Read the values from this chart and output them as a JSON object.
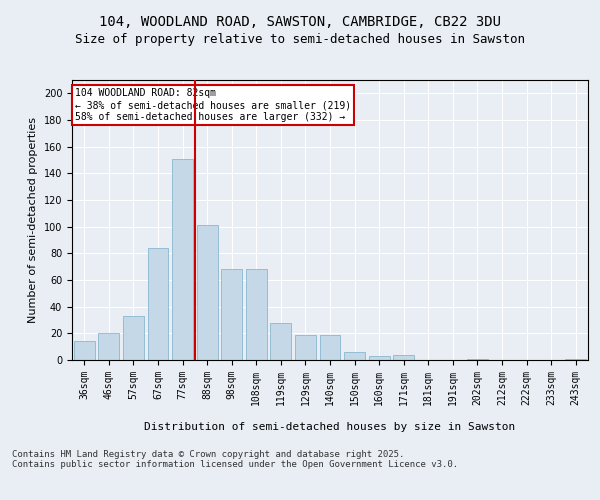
{
  "title_line1": "104, WOODLAND ROAD, SAWSTON, CAMBRIDGE, CB22 3DU",
  "title_line2": "Size of property relative to semi-detached houses in Sawston",
  "xlabel": "Distribution of semi-detached houses by size in Sawston",
  "ylabel": "Number of semi-detached properties",
  "categories": [
    "36sqm",
    "46sqm",
    "57sqm",
    "67sqm",
    "77sqm",
    "88sqm",
    "98sqm",
    "108sqm",
    "119sqm",
    "129sqm",
    "140sqm",
    "150sqm",
    "160sqm",
    "171sqm",
    "181sqm",
    "191sqm",
    "202sqm",
    "212sqm",
    "222sqm",
    "233sqm",
    "243sqm"
  ],
  "values": [
    14,
    20,
    33,
    84,
    151,
    101,
    68,
    68,
    28,
    19,
    19,
    6,
    3,
    4,
    0,
    0,
    1,
    0,
    0,
    0,
    1
  ],
  "bar_color": "#c5d8e8",
  "bar_edge_color": "#7aaec8",
  "vline_color": "#cc0000",
  "annotation_text": "104 WOODLAND ROAD: 82sqm\n← 38% of semi-detached houses are smaller (219)\n58% of semi-detached houses are larger (332) →",
  "annotation_box_color": "#ffffff",
  "annotation_box_edge": "#cc0000",
  "ylim": [
    0,
    210
  ],
  "yticks": [
    0,
    20,
    40,
    60,
    80,
    100,
    120,
    140,
    160,
    180,
    200
  ],
  "background_color": "#e8eef4",
  "plot_background_color": "#e8eef4",
  "footer": "Contains HM Land Registry data © Crown copyright and database right 2025.\nContains public sector information licensed under the Open Government Licence v3.0.",
  "title_fontsize": 10,
  "subtitle_fontsize": 9,
  "tick_fontsize": 7,
  "label_fontsize": 8,
  "footer_fontsize": 6.5
}
